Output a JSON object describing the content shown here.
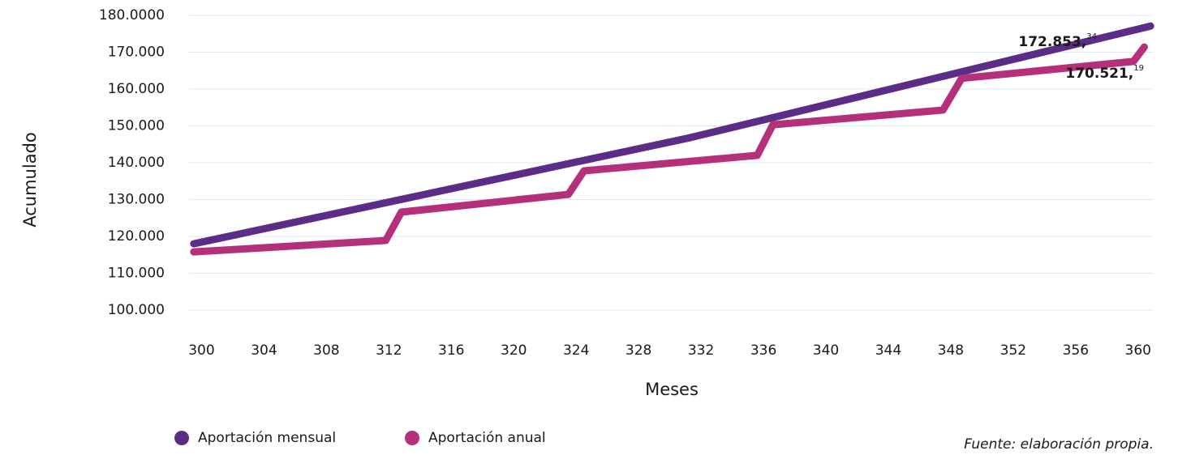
{
  "chart_data": {
    "type": "line",
    "ylabel": "Acumulado",
    "xlabel": "Meses",
    "source": "Fuente: elaboración propia.",
    "xlim": [
      299.3,
      361
    ],
    "xticks": [
      300,
      304,
      308,
      312,
      316,
      320,
      324,
      328,
      332,
      336,
      340,
      344,
      348,
      352,
      356,
      360
    ],
    "ylim": [
      100000,
      180000
    ],
    "yticks": [
      {
        "value": 100000,
        "label": "100.000"
      },
      {
        "value": 110000,
        "label": "110.000"
      },
      {
        "value": 120000,
        "label": "120.000"
      },
      {
        "value": 130000,
        "label": "130.000"
      },
      {
        "value": 140000,
        "label": "140.000"
      },
      {
        "value": 150000,
        "label": "150.000"
      },
      {
        "value": 160000,
        "label": "160.000"
      },
      {
        "value": 170000,
        "label": "170.000"
      },
      {
        "value": 180000,
        "label": "180.0000"
      }
    ],
    "grid": true,
    "series": [
      {
        "name": "Aportación mensual",
        "color": "#5c2d86",
        "x": [
          299.5,
          331.3,
          360.8
        ],
        "values": [
          118000,
          146800,
          177100
        ]
      },
      {
        "name": "Aportación anual",
        "color": "#b5307a",
        "x": [
          299.5,
          311.8,
          312.8,
          323.5,
          324.5,
          335.6,
          336.6,
          347.5,
          348.7,
          359.7,
          360.4
        ],
        "values": [
          115800,
          118900,
          126600,
          131400,
          137800,
          142000,
          150300,
          154300,
          162900,
          167500,
          171400
        ]
      }
    ],
    "annotations": [
      {
        "text": "172.853,",
        "sup": "34"
      },
      {
        "text": "170.521,",
        "sup": "19"
      }
    ]
  }
}
